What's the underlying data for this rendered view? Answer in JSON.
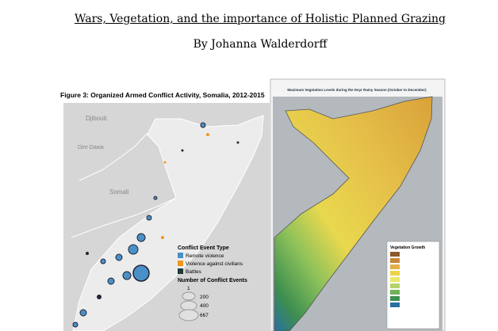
{
  "header": {
    "title": "Wars, Vegetation, and the importance of Holistic Planned Grazing",
    "author": "By Johanna Walderdorff"
  },
  "figure_left": {
    "title": "Figure 3: Organized Armed Conflict Activity, Somalia, 2012-2015",
    "places": [
      "Djibouti",
      "Dire Dawa",
      "Somali"
    ],
    "legend": {
      "type_title": "Conflict Event Type",
      "types": [
        "Remote violence",
        "Violence against civilians",
        "Battles"
      ],
      "size_title": "Number of Conflict Events",
      "sizes": [
        "1",
        "200",
        "400",
        "667"
      ]
    }
  },
  "figure_right": {
    "title": "Maximum Vegetation Levels during the Deyr Rainy Season (October to December)",
    "legend_title": "Vegetation Growth"
  }
}
